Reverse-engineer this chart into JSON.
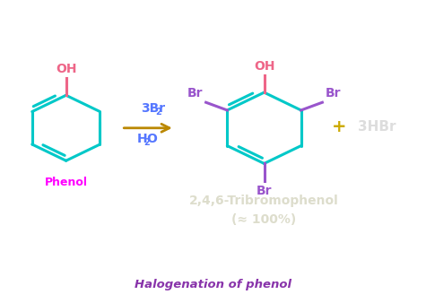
{
  "bg_color": "#0d2030",
  "ring_color": "#00c8c8",
  "oh_color": "#ee6688",
  "br_color": "#9955cc",
  "reagent_color": "#5577ff",
  "arrow_color": "#bb8800",
  "product_label_color": "#ddddcc",
  "phenol_label_color": "#ff00ff",
  "hbr_color": "#dddddd",
  "plus_color": "#ccaa00",
  "title": "Halogenation of phenol",
  "title_color": "#8833aa",
  "product_name": "2,4,6-Tribromophenol",
  "product_yield": "(≈ 100%)"
}
